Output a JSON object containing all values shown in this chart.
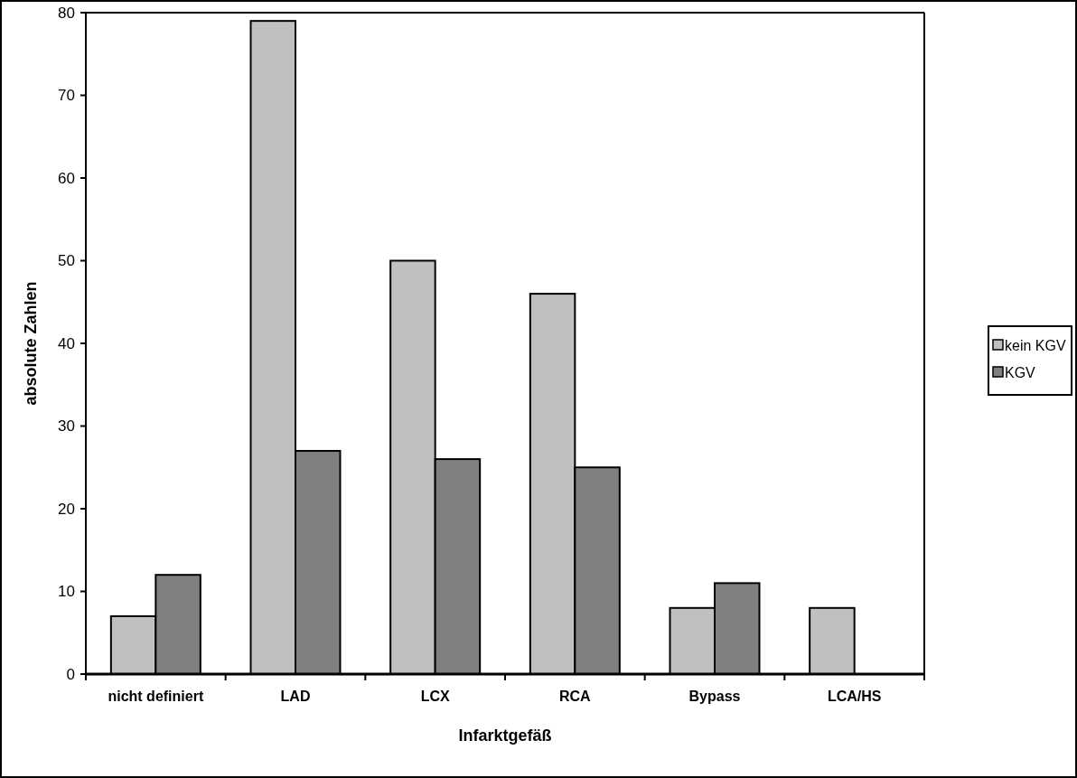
{
  "chart_data": {
    "type": "bar",
    "xlabel": "Infarktgefäß",
    "ylabel": "absolute Zahlen",
    "categories": [
      "nicht definiert",
      "LAD",
      "LCX",
      "RCA",
      "Bypass",
      "LCA/HS"
    ],
    "series": [
      {
        "name": "kein KGV",
        "color": "#c0c0c0",
        "values": [
          7,
          79,
          50,
          46,
          8,
          8
        ]
      },
      {
        "name": "KGV",
        "color": "#808080",
        "values": [
          12,
          27,
          26,
          25,
          11,
          0
        ]
      }
    ],
    "ylim": [
      0,
      80
    ],
    "yticks": [
      0,
      10,
      20,
      30,
      40,
      50,
      60,
      70,
      80
    ],
    "grid": false,
    "legend": "right"
  }
}
